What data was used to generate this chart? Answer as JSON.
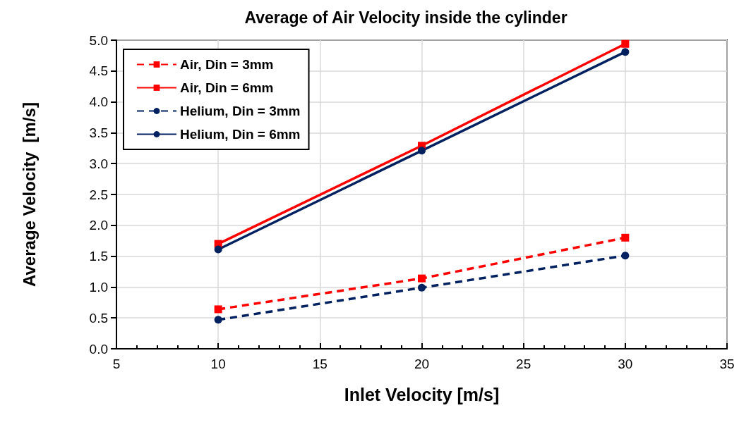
{
  "chart_data": {
    "type": "line",
    "title": "Average of Air Velocity inside the cylinder",
    "xlabel": "Inlet Velocity [m/s]",
    "ylabel": "Average Velocity  [m/s]",
    "x": [
      10,
      20,
      30
    ],
    "series": [
      {
        "name": "Air, Din = 3mm",
        "color": "#ff0000",
        "marker": "square",
        "line_style": "dashed",
        "values": [
          0.64,
          1.14,
          1.8
        ]
      },
      {
        "name": "Air, Din = 6mm",
        "color": "#ff0000",
        "marker": "square",
        "line_style": "solid",
        "values": [
          1.7,
          3.29,
          4.94
        ]
      },
      {
        "name": "Helium, Din = 3mm",
        "color": "#002060",
        "marker": "circle",
        "line_style": "dashed",
        "values": [
          0.47,
          0.99,
          1.51
        ]
      },
      {
        "name": "Helium, Din = 6mm",
        "color": "#002060",
        "marker": "circle",
        "line_style": "solid",
        "values": [
          1.61,
          3.21,
          4.81
        ]
      }
    ],
    "xlim": [
      5,
      35
    ],
    "xticks": [
      5,
      10,
      15,
      20,
      25,
      30,
      35
    ],
    "ylim": [
      0,
      5
    ],
    "yticks": [
      {
        "value": 0,
        "label": "0.0"
      },
      0.5,
      {
        "value": 1,
        "label": "1.0"
      },
      1.5,
      {
        "value": 2,
        "label": "2.0"
      },
      2.5,
      {
        "value": 3,
        "label": "3.0"
      },
      3.5,
      {
        "value": 4,
        "label": "4.0"
      },
      4.5,
      {
        "value": 5,
        "label": "5.0"
      }
    ],
    "grid": true,
    "legend": "top left"
  }
}
